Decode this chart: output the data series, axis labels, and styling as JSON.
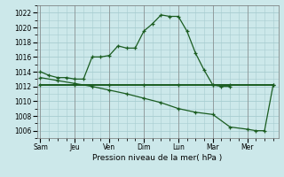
{
  "xlabel": "Pression niveau de la mer( hPa )",
  "background_color": "#cce8ea",
  "grid_color": "#a8cdd0",
  "line_color": "#1a5c20",
  "ylim": [
    1005,
    1023
  ],
  "yticks": [
    1006,
    1008,
    1010,
    1012,
    1014,
    1016,
    1018,
    1020,
    1022
  ],
  "day_labels": [
    "Sam",
    "Jeu",
    "Ven",
    "Dim",
    "Lun",
    "Mar",
    "Mer"
  ],
  "day_positions": [
    0,
    2,
    4,
    6,
    8,
    10,
    12
  ],
  "xlim": [
    -0.2,
    13.8
  ],
  "line1_x": [
    0,
    0.5,
    1,
    1.5,
    2,
    2.5,
    3,
    3.5,
    4,
    4.5,
    5,
    5.5,
    6,
    6.5,
    7,
    7.5,
    8,
    8.5,
    9,
    9.5,
    10,
    10.5,
    11
  ],
  "line1_y": [
    1014,
    1013.5,
    1013.2,
    1013.2,
    1013.0,
    1013.0,
    1016.0,
    1016.0,
    1016.2,
    1017.5,
    1017.2,
    1017.2,
    1019.5,
    1020.5,
    1021.7,
    1021.5,
    1021.5,
    1019.5,
    1016.5,
    1014.2,
    1012.2,
    1012.0,
    1012.0
  ],
  "line2_x": [
    0,
    2,
    4,
    6,
    8,
    10,
    11,
    13.5
  ],
  "line2_y": [
    1012.2,
    1012.2,
    1012.2,
    1012.2,
    1012.2,
    1012.2,
    1012.2,
    1012.2
  ],
  "line3_x": [
    0,
    1,
    2,
    3,
    4,
    5,
    6,
    7,
    8,
    9,
    10,
    11,
    12,
    12.5,
    13,
    13.5
  ],
  "line3_y": [
    1013.2,
    1012.8,
    1012.4,
    1012.0,
    1011.5,
    1011.0,
    1010.4,
    1009.8,
    1009.0,
    1008.5,
    1008.2,
    1006.5,
    1006.2,
    1006.0,
    1006.0,
    1012.2
  ]
}
